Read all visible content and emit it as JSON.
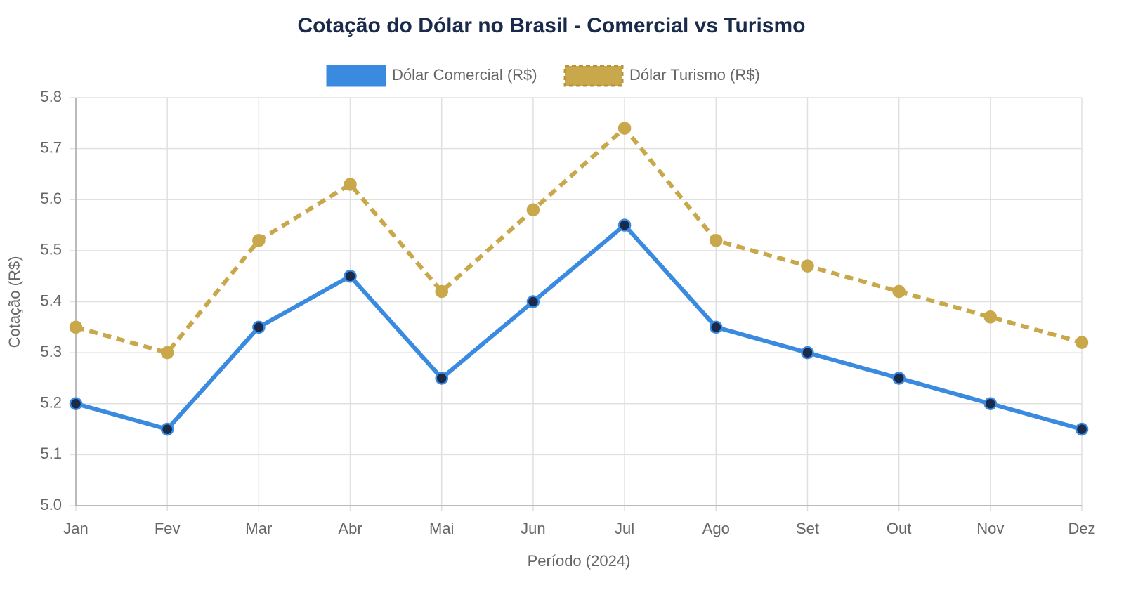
{
  "chart_data": {
    "type": "line",
    "title": "Cotação do Dólar no Brasil - Comercial vs Turismo",
    "x_label": "Período (2024)",
    "y_label": "Cotação (R$)",
    "categories": [
      "Jan",
      "Fev",
      "Mar",
      "Abr",
      "Mai",
      "Jun",
      "Jul",
      "Ago",
      "Set",
      "Out",
      "Nov",
      "Dez"
    ],
    "series": [
      {
        "name": "Dólar Comercial (R$)",
        "color": "#3a8be0",
        "point_color": "#1a2a4a",
        "dashed": false,
        "values": [
          5.2,
          5.15,
          5.35,
          5.45,
          5.25,
          5.4,
          5.55,
          5.35,
          5.3,
          5.25,
          5.2,
          5.15
        ]
      },
      {
        "name": "Dólar Turismo (R$)",
        "color": "#c9a84c",
        "point_color": "#c9a84c",
        "dashed": true,
        "values": [
          5.35,
          5.3,
          5.52,
          5.63,
          5.42,
          5.58,
          5.74,
          5.52,
          5.47,
          5.42,
          5.37,
          5.32
        ]
      }
    ],
    "ylim": [
      5.0,
      5.8
    ],
    "yticks": [
      {
        "value": 5,
        "label": "5.0"
      },
      5.1,
      5.2,
      5.3,
      5.4,
      5.5,
      5.6,
      5.7,
      5.8
    ],
    "grid": true,
    "legend": "top"
  }
}
